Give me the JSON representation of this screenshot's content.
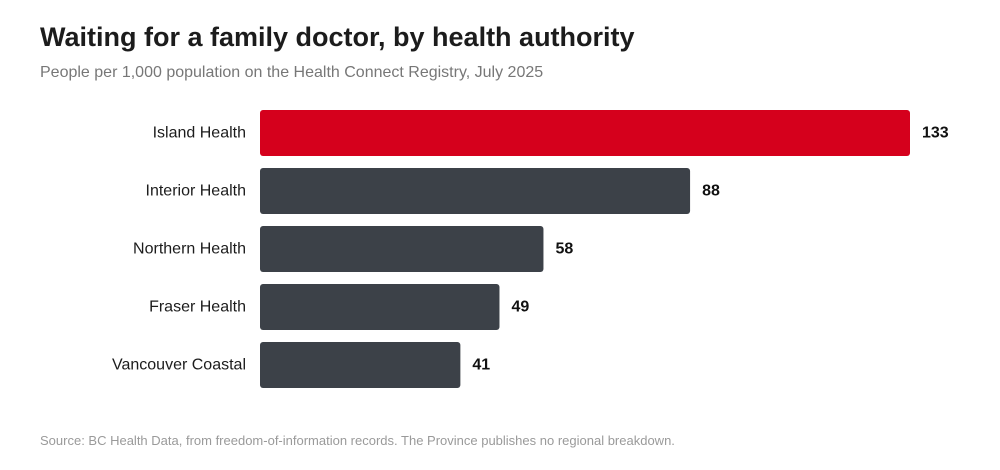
{
  "title": "Waiting for a family doctor, by health authority",
  "subtitle": "People per 1,000 population on the Health Connect Registry, July 2025",
  "source": "Source: BC Health Data, from freedom-of-information records. The Province publishes no regional breakdown.",
  "colors": {
    "highlight": "#d5001c",
    "bar": "#3c4148",
    "label": "#1c1c1c",
    "value": "#111111"
  },
  "chart_data": {
    "type": "bar",
    "orientation": "horizontal",
    "title": "Waiting for a family doctor, by health authority",
    "subtitle": "People per 1,000 population on the Health Connect Registry, July 2025",
    "categories": [
      "Island Health",
      "Interior Health",
      "Northern Health",
      "Fraser Health",
      "Vancouver Coastal"
    ],
    "values": [
      133,
      88,
      58,
      49,
      41
    ],
    "highlighted": [
      "Island Health"
    ],
    "xlabel": "",
    "ylabel": "",
    "grid": false,
    "legend": "none"
  }
}
